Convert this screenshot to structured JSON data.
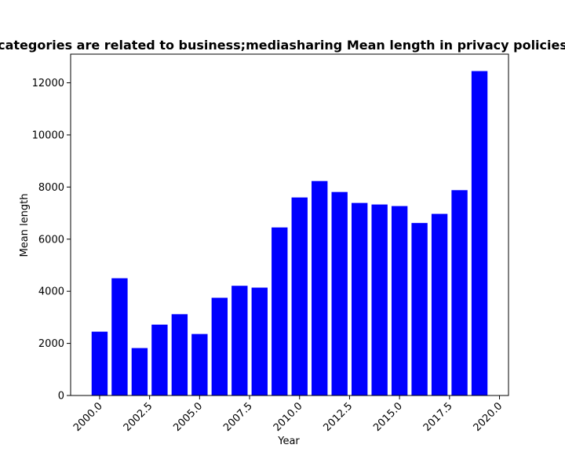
{
  "chart_data": {
    "type": "bar",
    "title": "categories are related to business;mediasharing Mean length in privacy policies",
    "xlabel": "Year",
    "ylabel": "Mean length",
    "x": [
      2000,
      2001,
      2002,
      2003,
      2004,
      2005,
      2006,
      2007,
      2008,
      2009,
      2010,
      2011,
      2012,
      2013,
      2014,
      2015,
      2016,
      2017,
      2018,
      2019
    ],
    "values": [
      2450,
      4500,
      1820,
      2720,
      3120,
      2360,
      3750,
      4210,
      4140,
      6450,
      7600,
      8230,
      7810,
      7390,
      7330,
      7270,
      6620,
      6970,
      7880,
      12450
    ],
    "xlim": [
      1998.55,
      2020.45
    ],
    "ylim": [
      0,
      13100
    ],
    "xticks": [
      2000.0,
      2002.5,
      2005.0,
      2007.5,
      2010.0,
      2012.5,
      2015.0,
      2017.5,
      2020.0
    ],
    "xtick_labels": [
      "2000.0",
      "2002.5",
      "2005.0",
      "2007.5",
      "2010.0",
      "2012.5",
      "2015.0",
      "2017.5",
      "2020.0"
    ],
    "yticks": [
      0,
      2000,
      4000,
      6000,
      8000,
      10000,
      12000
    ],
    "ytick_labels": [
      "0",
      "2000",
      "4000",
      "6000",
      "8000",
      "10000",
      "12000"
    ],
    "bar_color": "#0000ff",
    "grid": false,
    "legend": "none"
  }
}
